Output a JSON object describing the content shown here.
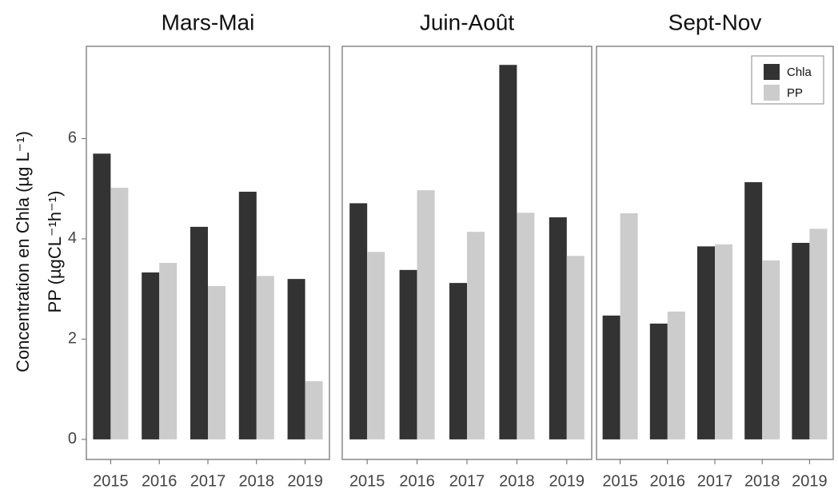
{
  "chart_data": {
    "type": "bar",
    "y_label": [
      "Concentration en Chla (µg L⁻¹)",
      "PP (µgCL⁻¹h⁻¹)"
    ],
    "categories": [
      "2015",
      "2016",
      "2017",
      "2018",
      "2019"
    ],
    "ylim": [
      -0.4,
      7.84
    ],
    "yticks": [
      0,
      2,
      4,
      6
    ],
    "legend": "top-right",
    "series": [
      {
        "name": "Chla",
        "color": "#333333"
      },
      {
        "name": "PP",
        "color": "#cccccc"
      }
    ],
    "panels": [
      {
        "title": "Mars-Mai",
        "values": [
          [
            5.7,
            3.33,
            4.24,
            4.94,
            3.2
          ],
          [
            5.02,
            3.52,
            3.06,
            3.26,
            1.16
          ]
        ]
      },
      {
        "title": "Juin-Août",
        "values": [
          [
            4.71,
            3.38,
            3.12,
            7.47,
            4.43
          ],
          [
            3.74,
            4.97,
            4.14,
            4.52,
            3.66
          ]
        ]
      },
      {
        "title": "Sept-Nov",
        "values": [
          [
            2.47,
            2.31,
            3.85,
            5.13,
            3.92
          ],
          [
            4.51,
            2.55,
            3.89,
            3.57,
            4.2
          ]
        ]
      }
    ]
  }
}
